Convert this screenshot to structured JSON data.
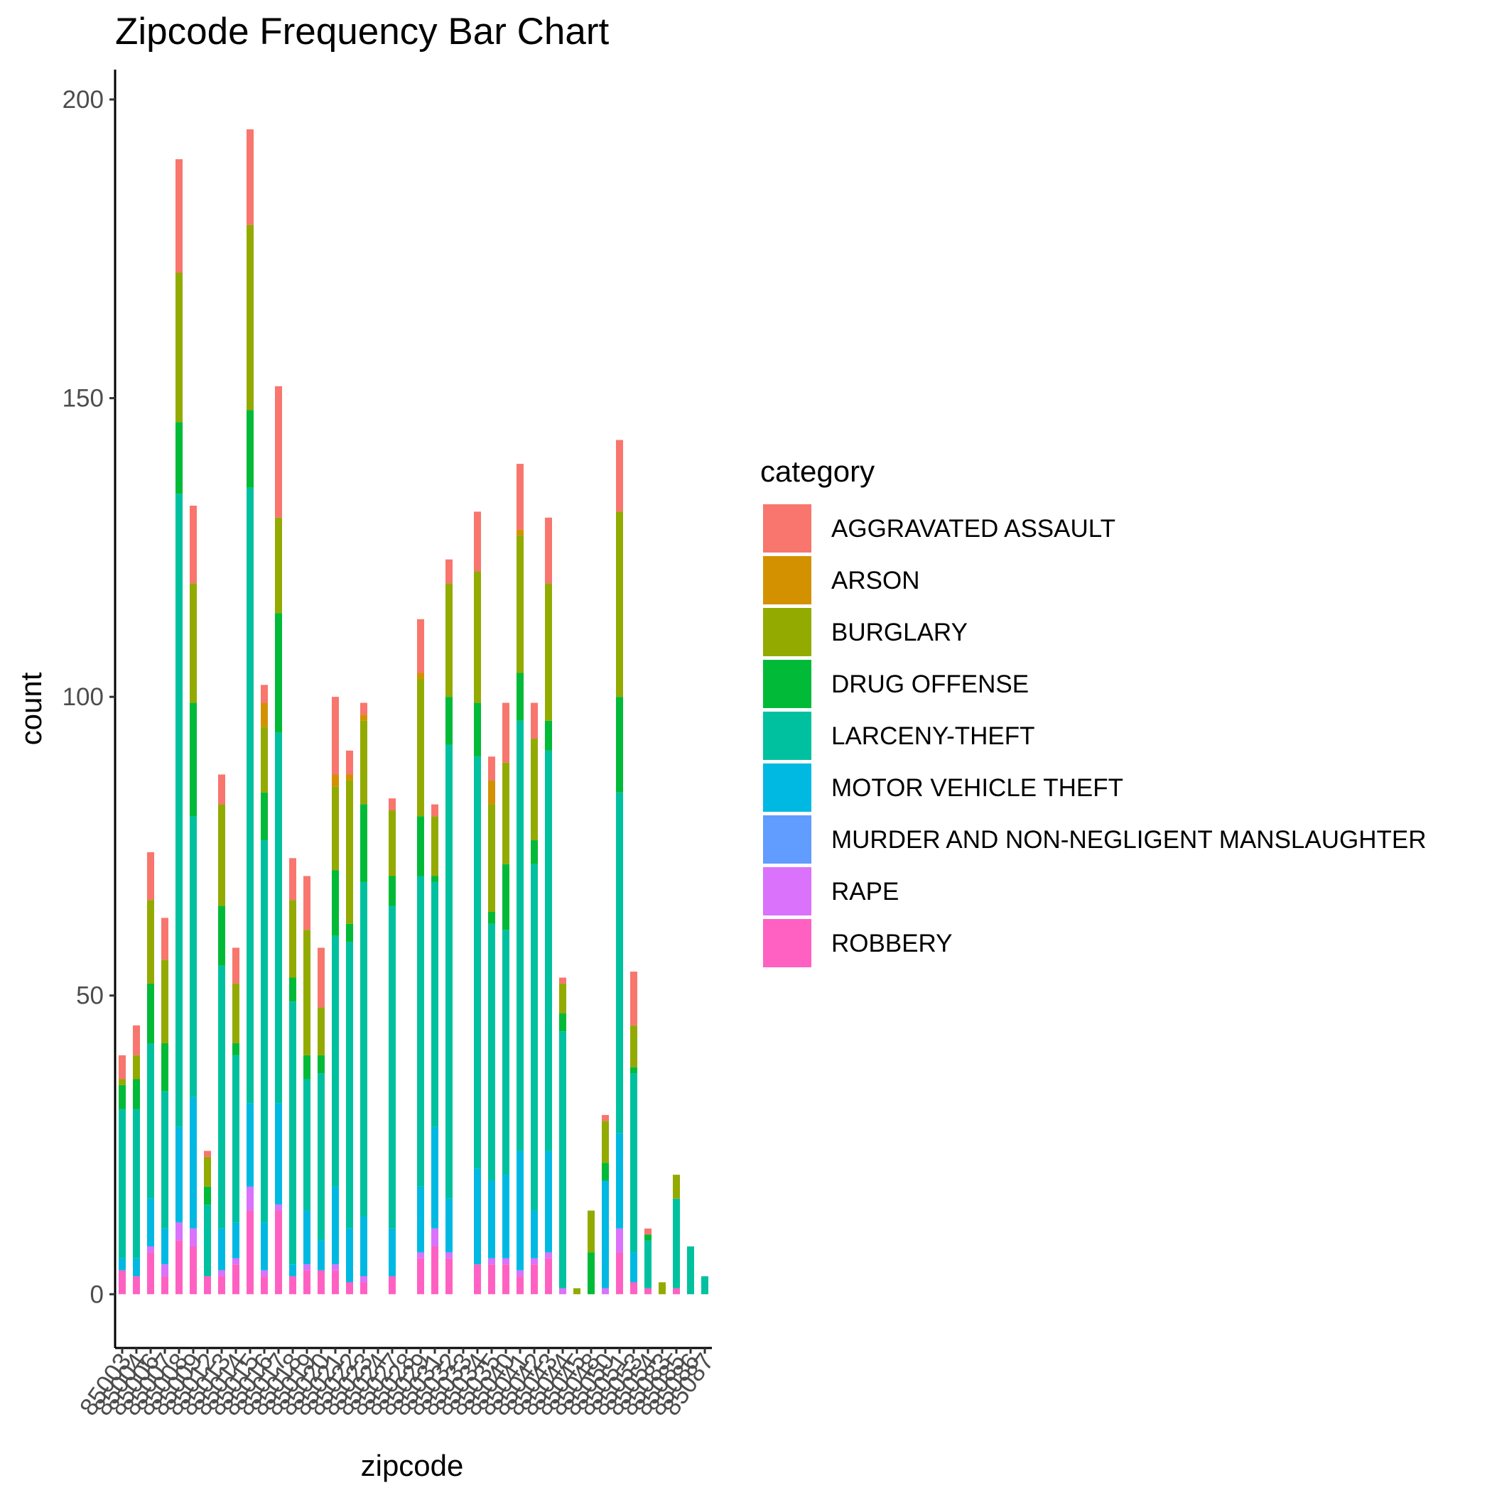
{
  "chart_data": {
    "type": "bar",
    "stacked": true,
    "title": "Zipcode Frequency Bar Chart",
    "xlabel": "zipcode",
    "ylabel": "count",
    "ylim": [
      -9,
      205
    ],
    "yticks": [
      0,
      50,
      100,
      150,
      200
    ],
    "grid": false,
    "legend": {
      "title": "category",
      "placement": "right"
    },
    "categories": [
      "85003",
      "85004",
      "85006",
      "85007",
      "85008",
      "85009",
      "85012",
      "85013",
      "85014",
      "85015",
      "85016",
      "85017",
      "85018",
      "85019",
      "85020",
      "85021",
      "85022",
      "85023",
      "85024",
      "85027",
      "85028",
      "85029",
      "85031",
      "85032",
      "85033",
      "85034",
      "85035",
      "85040",
      "85041",
      "85042",
      "85043",
      "85044",
      "85045",
      "85048",
      "85050",
      "85051",
      "85053",
      "85054",
      "85083",
      "85085",
      "85086",
      "85087"
    ],
    "series": [
      {
        "name": "ROBBERY",
        "color": "#FF61C3",
        "values": [
          4,
          3,
          7,
          3,
          9,
          8,
          3,
          3,
          5,
          14,
          3,
          14,
          3,
          4,
          4,
          4,
          2,
          2,
          0,
          3,
          0,
          6,
          8,
          6,
          0,
          5,
          5,
          5,
          3,
          5,
          6,
          0,
          0,
          0,
          0,
          7,
          2,
          1,
          0,
          1,
          0,
          0
        ]
      },
      {
        "name": "RAPE",
        "color": "#DB72FB",
        "values": [
          0,
          0,
          1,
          2,
          3,
          3,
          0,
          1,
          1,
          4,
          1,
          1,
          0,
          1,
          0,
          1,
          0,
          1,
          0,
          0,
          0,
          1,
          3,
          1,
          0,
          0,
          1,
          1,
          1,
          1,
          1,
          1,
          0,
          0,
          1,
          4,
          0,
          0,
          0,
          0,
          0,
          0
        ]
      },
      {
        "name": "MURDER AND NON-NEGLIGENT MANSLAUGHTER",
        "color": "#619CFF",
        "values": [
          0,
          0,
          0,
          0,
          0,
          0,
          0,
          0,
          0,
          0,
          0,
          0,
          0,
          0,
          0,
          0,
          0,
          0,
          0,
          0,
          0,
          0,
          0,
          0,
          0,
          0,
          0,
          0,
          0,
          0,
          0,
          0,
          0,
          0,
          0,
          0,
          0,
          0,
          0,
          0,
          0,
          0
        ]
      },
      {
        "name": "MOTOR VEHICLE THEFT",
        "color": "#00B9E3",
        "values": [
          2,
          3,
          8,
          6,
          16,
          22,
          0,
          7,
          6,
          14,
          8,
          17,
          2,
          9,
          5,
          13,
          9,
          10,
          0,
          8,
          0,
          11,
          17,
          9,
          0,
          16,
          13,
          14,
          20,
          8,
          17,
          0,
          0,
          0,
          18,
          16,
          5,
          0,
          0,
          0,
          0,
          0
        ]
      },
      {
        "name": "LARCENY-THEFT",
        "color": "#00C19F",
        "values": [
          25,
          25,
          26,
          23,
          106,
          47,
          12,
          44,
          28,
          103,
          64,
          62,
          44,
          22,
          28,
          42,
          48,
          56,
          0,
          54,
          0,
          52,
          41,
          76,
          0,
          69,
          43,
          41,
          72,
          58,
          67,
          43,
          0,
          0,
          0,
          57,
          30,
          8,
          0,
          15,
          8,
          3
        ]
      },
      {
        "name": "DRUG OFFENSE",
        "color": "#00BA38",
        "values": [
          4,
          5,
          10,
          8,
          12,
          19,
          3,
          10,
          2,
          13,
          8,
          20,
          4,
          4,
          3,
          11,
          3,
          13,
          0,
          5,
          0,
          10,
          1,
          8,
          0,
          9,
          2,
          11,
          8,
          4,
          5,
          3,
          0,
          7,
          3,
          16,
          1,
          1,
          0,
          0,
          0,
          0
        ]
      },
      {
        "name": "BURGLARY",
        "color": "#93AA00",
        "values": [
          1,
          4,
          14,
          14,
          25,
          20,
          5,
          17,
          10,
          31,
          11,
          16,
          13,
          21,
          8,
          14,
          24,
          14,
          0,
          11,
          0,
          23,
          10,
          19,
          0,
          22,
          18,
          17,
          23,
          17,
          23,
          5,
          1,
          7,
          7,
          31,
          7,
          0,
          2,
          4,
          0,
          0
        ]
      },
      {
        "name": "ARSON",
        "color": "#D39100",
        "values": [
          0,
          0,
          0,
          0,
          0,
          0,
          0,
          0,
          0,
          0,
          4,
          0,
          0,
          0,
          0,
          2,
          1,
          1,
          0,
          0,
          0,
          1,
          0,
          0,
          0,
          0,
          4,
          0,
          1,
          0,
          0,
          0,
          0,
          0,
          0,
          0,
          0,
          0,
          0,
          0,
          0,
          0
        ]
      },
      {
        "name": "AGGRAVATED ASSAULT",
        "color": "#F8766D",
        "values": [
          4,
          5,
          8,
          7,
          19,
          13,
          1,
          5,
          6,
          16,
          3,
          22,
          7,
          9,
          10,
          13,
          4,
          2,
          0,
          2,
          0,
          9,
          2,
          4,
          0,
          10,
          4,
          10,
          11,
          6,
          11,
          1,
          0,
          0,
          1,
          12,
          9,
          1,
          0,
          0,
          0,
          0
        ]
      }
    ]
  }
}
